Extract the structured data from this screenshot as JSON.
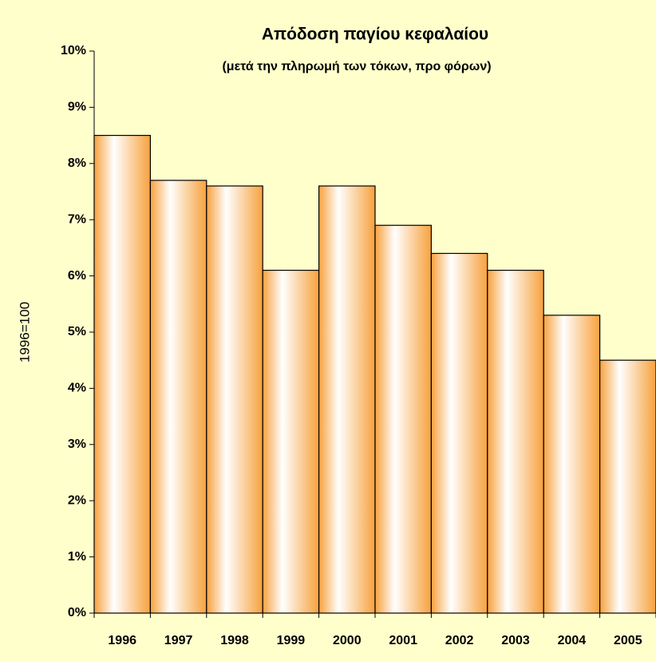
{
  "chart_data": {
    "type": "bar",
    "title": "Απόδοση παγίου κεφαλαίου",
    "subtitle": "(μετά την πληρωμή των τόκων, προ φόρων)",
    "y_axis_label": "1996=100",
    "categories": [
      "1996",
      "1997",
      "1998",
      "1999",
      "2000",
      "2001",
      "2002",
      "2003",
      "2004",
      "2005"
    ],
    "values": [
      8.5,
      7.7,
      7.6,
      6.1,
      7.6,
      6.9,
      6.4,
      6.1,
      5.3,
      4.5
    ],
    "color": "#f7a13d",
    "ylim": [
      0,
      10
    ],
    "yticks": [
      {
        "value": 0,
        "label": "0%"
      },
      {
        "value": 1,
        "label": "1%"
      },
      {
        "value": 2,
        "label": "2%"
      },
      {
        "value": 3,
        "label": "3%"
      },
      {
        "value": 4,
        "label": "4%"
      },
      {
        "value": 5,
        "label": "5%"
      },
      {
        "value": 6,
        "label": "6%"
      },
      {
        "value": 7,
        "label": "7%"
      },
      {
        "value": 8,
        "label": "8%"
      },
      {
        "value": 9,
        "label": "9%"
      },
      {
        "value": 10,
        "label": "10%"
      }
    ],
    "grid": false
  }
}
